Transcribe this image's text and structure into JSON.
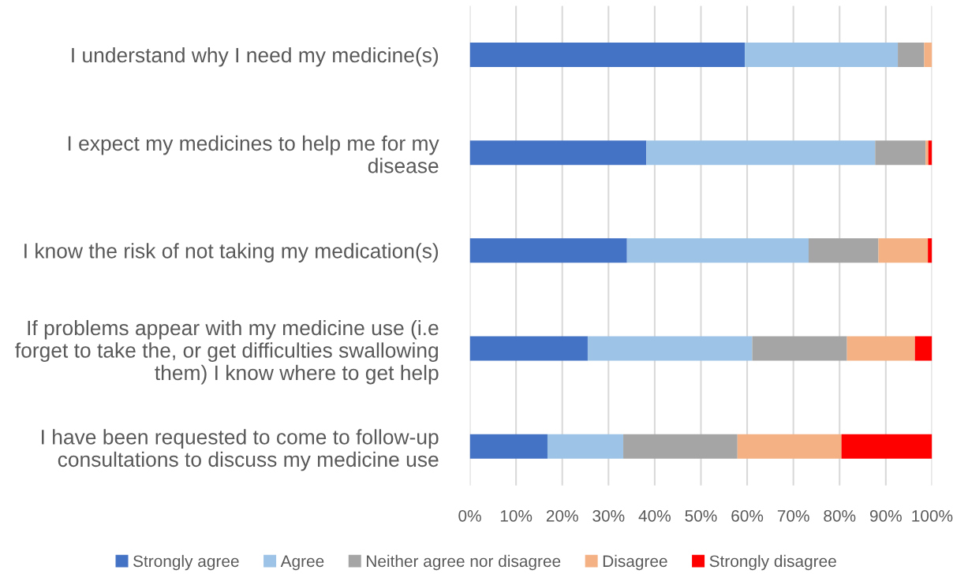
{
  "chart_data": {
    "type": "bar",
    "orientation": "horizontal",
    "stacked": true,
    "categories": [
      "I understand why I need my medicine(s)",
      "I expect my medicines to help me for my disease",
      "I know the risk of not taking my medication(s)",
      "If problems appear with my medicine use (i.e forget to take the, or get difficulties swallowing them) I know where to get help",
      "I have been requested to come to follow-up consultations to discuss my medicine use"
    ],
    "series": [
      {
        "name": "Strongly agree",
        "color": "#4472c4",
        "values": [
          59.5,
          38.2,
          34.0,
          25.5,
          16.8
        ]
      },
      {
        "name": "Agree",
        "color": "#9dc3e6",
        "values": [
          33.1,
          49.5,
          39.3,
          35.6,
          16.4
        ]
      },
      {
        "name": "Neither agree nor disagree",
        "color": "#a5a5a5",
        "values": [
          5.7,
          10.9,
          15.1,
          20.5,
          24.7
        ]
      },
      {
        "name": "Disagree",
        "color": "#f4b183",
        "values": [
          1.7,
          0.6,
          10.7,
          14.7,
          22.5
        ]
      },
      {
        "name": "Strongly disagree",
        "color": "#ff0000",
        "values": [
          0,
          0.8,
          0.9,
          3.7,
          19.6
        ]
      }
    ],
    "xlim": [
      0,
      100
    ],
    "xticks": [
      {
        "value": 0,
        "label": "0%"
      },
      {
        "value": 10,
        "label": "10%"
      },
      {
        "value": 20,
        "label": "20%"
      },
      {
        "value": 30,
        "label": "30%"
      },
      {
        "value": 40,
        "label": "40%"
      },
      {
        "value": 50,
        "label": "50%"
      },
      {
        "value": 60,
        "label": "60%"
      },
      {
        "value": 70,
        "label": "70%"
      },
      {
        "value": 80,
        "label": "80%"
      },
      {
        "value": 90,
        "label": "90%"
      },
      {
        "value": 100,
        "label": "100%"
      }
    ],
    "grid": "x",
    "legend": "bottom"
  }
}
